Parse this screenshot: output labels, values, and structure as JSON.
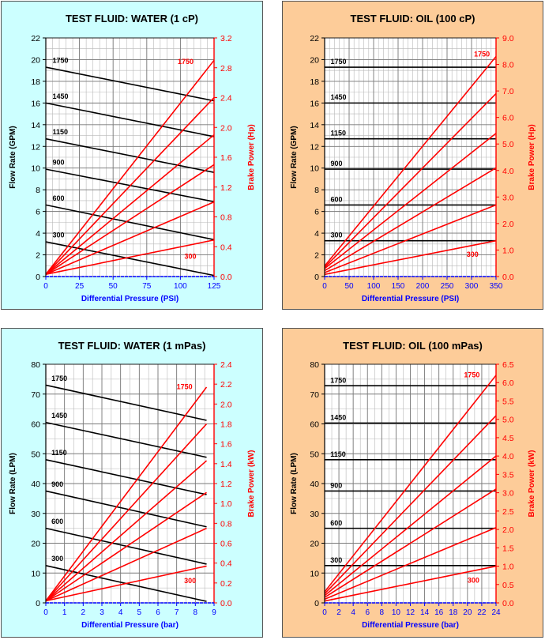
{
  "colors": {
    "water_panel_bg": "#ccffff",
    "oil_panel_bg": "#fdcc99",
    "flow_line": "#000000",
    "power_line": "#ff0000",
    "right_axis": "#ff0000",
    "x_label": "#0000ff",
    "x_axis_line": "#0000ff"
  },
  "chart_data": [
    {
      "type": "line",
      "title": "TEST FLUID:  WATER (1 cP)",
      "xlabel": "Differential Pressure (PSI)",
      "ylabel": "Flow Rate (GPM)",
      "y2label": "Brake Power (Hp)",
      "xlim": [
        0,
        125
      ],
      "ylim": [
        0,
        22
      ],
      "y2lim": [
        0,
        3.2
      ],
      "xticks": [
        0,
        25,
        50,
        75,
        100,
        125
      ],
      "yticks": [
        0,
        2,
        4,
        6,
        8,
        10,
        12,
        14,
        16,
        18,
        20,
        22
      ],
      "y2ticks": [
        0.0,
        0.4,
        0.8,
        1.2,
        1.6,
        2.0,
        2.4,
        2.8,
        3.2
      ],
      "xminor": 5,
      "yminor": 1,
      "flow_series": [
        {
          "name": "1750",
          "x": [
            0,
            125
          ],
          "y": [
            19.3,
            16.2
          ]
        },
        {
          "name": "1450",
          "x": [
            0,
            125
          ],
          "y": [
            16.0,
            12.9
          ]
        },
        {
          "name": "1150",
          "x": [
            0,
            125
          ],
          "y": [
            12.7,
            9.6
          ]
        },
        {
          "name": "900",
          "x": [
            0,
            125
          ],
          "y": [
            9.9,
            6.9
          ]
        },
        {
          "name": "600",
          "x": [
            0,
            125
          ],
          "y": [
            6.6,
            3.4
          ]
        },
        {
          "name": "300",
          "x": [
            0,
            125
          ],
          "y": [
            3.2,
            0.1
          ]
        }
      ],
      "power_series": [
        {
          "name": "1750",
          "x": [
            0,
            125
          ],
          "y": [
            0.03,
            2.9
          ]
        },
        {
          "name": "1450",
          "x": [
            0,
            125
          ],
          "y": [
            0.03,
            2.4
          ]
        },
        {
          "name": "1150",
          "x": [
            0,
            125
          ],
          "y": [
            0.03,
            1.9
          ]
        },
        {
          "name": "900",
          "x": [
            0,
            125
          ],
          "y": [
            0.03,
            1.5
          ]
        },
        {
          "name": "600",
          "x": [
            0,
            125
          ],
          "y": [
            0.03,
            1.0
          ]
        },
        {
          "name": "300",
          "x": [
            0,
            125
          ],
          "y": [
            0.03,
            0.49
          ]
        }
      ],
      "flow_labels": [
        {
          "text": "1750",
          "x": 5,
          "y": 19.7
        },
        {
          "text": "1450",
          "x": 5,
          "y": 16.4
        },
        {
          "text": "1150",
          "x": 5,
          "y": 13.1
        },
        {
          "text": "900",
          "x": 5,
          "y": 10.3
        },
        {
          "text": "600",
          "x": 5,
          "y": 7.0
        },
        {
          "text": "300",
          "x": 5,
          "y": 3.6
        }
      ],
      "power_labels": [
        {
          "text": "1750",
          "x": 98,
          "y": 2.85
        },
        {
          "text": "300",
          "x": 103,
          "y": 0.24
        }
      ]
    },
    {
      "type": "line",
      "title": "TEST FLUID:  OIL (100 cP)",
      "xlabel": "Differential Pressure (PSI)",
      "ylabel": "Flow Rate (GPM)",
      "y2label": "Brake Power (Hp)",
      "xlim": [
        0,
        350
      ],
      "ylim": [
        0,
        22
      ],
      "y2lim": [
        0,
        9.0
      ],
      "xticks": [
        0,
        50,
        100,
        150,
        200,
        250,
        300,
        350
      ],
      "yticks": [
        0,
        2,
        4,
        6,
        8,
        10,
        12,
        14,
        16,
        18,
        20,
        22
      ],
      "y2ticks": [
        0.0,
        1.0,
        2.0,
        3.0,
        4.0,
        5.0,
        6.0,
        7.0,
        8.0,
        9.0
      ],
      "xminor": 10,
      "yminor": 1,
      "flow_series": [
        {
          "name": "1750",
          "x": [
            0,
            350
          ],
          "y": [
            19.3,
            19.3
          ]
        },
        {
          "name": "1450",
          "x": [
            0,
            350
          ],
          "y": [
            16.0,
            16.0
          ]
        },
        {
          "name": "1150",
          "x": [
            0,
            350
          ],
          "y": [
            12.7,
            12.7
          ]
        },
        {
          "name": "900",
          "x": [
            0,
            350
          ],
          "y": [
            9.9,
            9.9
          ]
        },
        {
          "name": "600",
          "x": [
            0,
            350
          ],
          "y": [
            6.6,
            6.6
          ]
        },
        {
          "name": "300",
          "x": [
            0,
            350
          ],
          "y": [
            3.3,
            3.3
          ]
        }
      ],
      "power_series": [
        {
          "name": "1750",
          "x": [
            0,
            350
          ],
          "y": [
            0.4,
            8.3
          ]
        },
        {
          "name": "1450",
          "x": [
            0,
            350
          ],
          "y": [
            0.35,
            6.9
          ]
        },
        {
          "name": "1150",
          "x": [
            0,
            350
          ],
          "y": [
            0.3,
            5.4
          ]
        },
        {
          "name": "900",
          "x": [
            0,
            350
          ],
          "y": [
            0.22,
            4.1
          ]
        },
        {
          "name": "600",
          "x": [
            0,
            350
          ],
          "y": [
            0.15,
            2.7
          ]
        },
        {
          "name": "300",
          "x": [
            0,
            350
          ],
          "y": [
            0.08,
            1.35
          ]
        }
      ],
      "flow_labels": [
        {
          "text": "1750",
          "x": 12,
          "y": 19.6
        },
        {
          "text": "1450",
          "x": 12,
          "y": 16.3
        },
        {
          "text": "1150",
          "x": 12,
          "y": 13.0
        },
        {
          "text": "900",
          "x": 12,
          "y": 10.2
        },
        {
          "text": "600",
          "x": 12,
          "y": 6.9
        },
        {
          "text": "300",
          "x": 12,
          "y": 3.6
        }
      ],
      "power_labels": [
        {
          "text": "1750",
          "x": 305,
          "y": 8.3
        },
        {
          "text": "300",
          "x": 290,
          "y": 0.75
        }
      ]
    },
    {
      "type": "line",
      "title": "TEST FLUID:  WATER (1 mPas)",
      "xlabel": "Differential Pressure (bar)",
      "ylabel": "Flow Rate (LPM)",
      "y2label": "Brake Power (kW)",
      "xlim": [
        0,
        9
      ],
      "ylim": [
        0,
        80
      ],
      "y2lim": [
        0,
        2.4
      ],
      "xticks": [
        0,
        1,
        2,
        3,
        4,
        5,
        6,
        7,
        8,
        9
      ],
      "yticks": [
        0,
        10,
        20,
        30,
        40,
        50,
        60,
        70,
        80
      ],
      "y2ticks": [
        0.0,
        0.2,
        0.4,
        0.6,
        0.8,
        1.0,
        1.2,
        1.4,
        1.6,
        1.8,
        2.0,
        2.2,
        2.4
      ],
      "xminor": 0.5,
      "yminor": 5,
      "flow_series": [
        {
          "name": "1750",
          "x": [
            0,
            8.6
          ],
          "y": [
            73.0,
            61.2
          ]
        },
        {
          "name": "1450",
          "x": [
            0,
            8.6
          ],
          "y": [
            60.5,
            48.8
          ]
        },
        {
          "name": "1150",
          "x": [
            0,
            8.6
          ],
          "y": [
            48.0,
            36.3
          ]
        },
        {
          "name": "900",
          "x": [
            0,
            8.6
          ],
          "y": [
            37.5,
            25.5
          ]
        },
        {
          "name": "600",
          "x": [
            0,
            8.6
          ],
          "y": [
            25.0,
            13.0
          ]
        },
        {
          "name": "300",
          "x": [
            0,
            8.6
          ],
          "y": [
            12.5,
            0.5
          ]
        }
      ],
      "power_series": [
        {
          "name": "1750",
          "x": [
            0,
            8.6
          ],
          "y": [
            0.02,
            2.17
          ]
        },
        {
          "name": "1450",
          "x": [
            0,
            8.6
          ],
          "y": [
            0.02,
            1.8
          ]
        },
        {
          "name": "1150",
          "x": [
            0,
            8.6
          ],
          "y": [
            0.02,
            1.43
          ]
        },
        {
          "name": "900",
          "x": [
            0,
            8.6
          ],
          "y": [
            0.02,
            1.11
          ]
        },
        {
          "name": "600",
          "x": [
            0,
            8.6
          ],
          "y": [
            0.02,
            0.75
          ]
        },
        {
          "name": "300",
          "x": [
            0,
            8.6
          ],
          "y": [
            0.02,
            0.37
          ]
        }
      ],
      "flow_labels": [
        {
          "text": "1750",
          "x": 0.3,
          "y": 74.5
        },
        {
          "text": "1450",
          "x": 0.3,
          "y": 62.0
        },
        {
          "text": "1150",
          "x": 0.3,
          "y": 49.5
        },
        {
          "text": "900",
          "x": 0.3,
          "y": 39.0
        },
        {
          "text": "600",
          "x": 0.3,
          "y": 26.5
        },
        {
          "text": "300",
          "x": 0.3,
          "y": 14.0
        }
      ],
      "power_labels": [
        {
          "text": "1750",
          "x": 7.0,
          "y": 2.15
        },
        {
          "text": "300",
          "x": 7.4,
          "y": 0.2
        }
      ]
    },
    {
      "type": "line",
      "title": "TEST FLUID:  OIL (100 mPas)",
      "xlabel": "Differential Pressure (bar)",
      "ylabel": "Flow Rate (LPM)",
      "y2label": "Brake Power (kW)",
      "xlim": [
        0,
        24
      ],
      "ylim": [
        0,
        80
      ],
      "y2lim": [
        0,
        6.5
      ],
      "xticks": [
        0,
        2,
        4,
        6,
        8,
        10,
        12,
        14,
        16,
        18,
        20,
        22,
        24
      ],
      "yticks": [
        0,
        10,
        20,
        30,
        40,
        50,
        60,
        70,
        80
      ],
      "y2ticks": [
        0.0,
        0.5,
        1.0,
        1.5,
        2.0,
        2.5,
        3.0,
        3.5,
        4.0,
        4.5,
        5.0,
        5.5,
        6.0,
        6.5
      ],
      "xminor": 1,
      "yminor": 5,
      "flow_series": [
        {
          "name": "1750",
          "x": [
            0,
            24
          ],
          "y": [
            72.8,
            72.8
          ]
        },
        {
          "name": "1450",
          "x": [
            0,
            24
          ],
          "y": [
            60.3,
            60.3
          ]
        },
        {
          "name": "1150",
          "x": [
            0,
            24
          ],
          "y": [
            48.0,
            48.0
          ]
        },
        {
          "name": "900",
          "x": [
            0,
            24
          ],
          "y": [
            37.5,
            37.5
          ]
        },
        {
          "name": "600",
          "x": [
            0,
            24
          ],
          "y": [
            25.0,
            25.0
          ]
        },
        {
          "name": "300",
          "x": [
            0,
            24
          ],
          "y": [
            12.5,
            12.5
          ]
        }
      ],
      "power_series": [
        {
          "name": "1750",
          "x": [
            0,
            24
          ],
          "y": [
            0.3,
            6.2
          ]
        },
        {
          "name": "1450",
          "x": [
            0,
            24
          ],
          "y": [
            0.25,
            5.1
          ]
        },
        {
          "name": "1150",
          "x": [
            0,
            24
          ],
          "y": [
            0.2,
            4.0
          ]
        },
        {
          "name": "900",
          "x": [
            0,
            24
          ],
          "y": [
            0.15,
            3.1
          ]
        },
        {
          "name": "600",
          "x": [
            0,
            24
          ],
          "y": [
            0.1,
            2.05
          ]
        },
        {
          "name": "300",
          "x": [
            0,
            24
          ],
          "y": [
            0.05,
            1.0
          ]
        }
      ],
      "flow_labels": [
        {
          "text": "1750",
          "x": 0.8,
          "y": 73.8
        },
        {
          "text": "1450",
          "x": 0.8,
          "y": 61.3
        },
        {
          "text": "1150",
          "x": 0.8,
          "y": 49.0
        },
        {
          "text": "900",
          "x": 0.8,
          "y": 38.5
        },
        {
          "text": "600",
          "x": 0.8,
          "y": 26.0
        },
        {
          "text": "300",
          "x": 0.8,
          "y": 13.5
        }
      ],
      "power_labels": [
        {
          "text": "1750",
          "x": 19.5,
          "y": 6.15
        },
        {
          "text": "300",
          "x": 20.0,
          "y": 0.55
        }
      ]
    }
  ]
}
